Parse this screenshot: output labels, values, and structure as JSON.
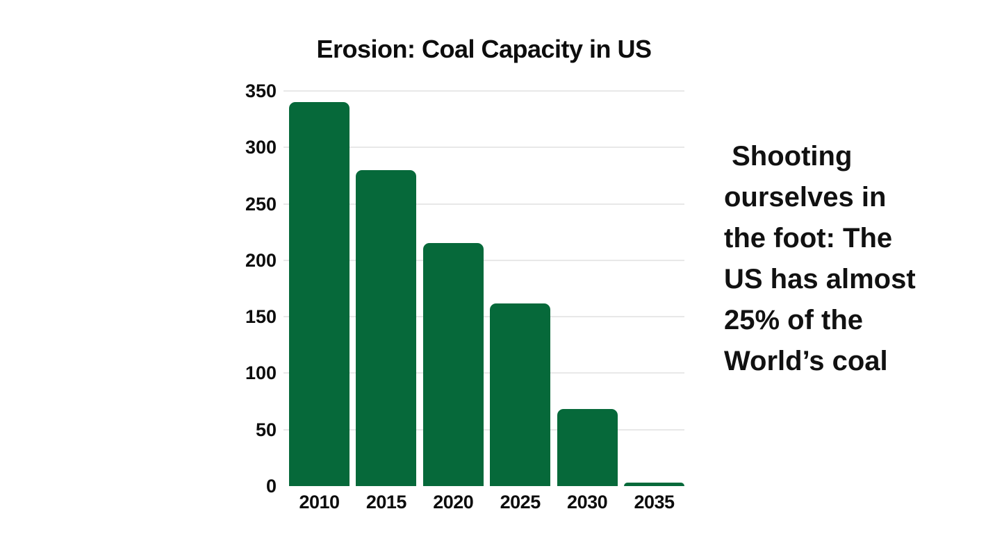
{
  "chart_data": {
    "type": "bar",
    "title": "Erosion: Coal Capacity in US",
    "categories": [
      "2010",
      "2015",
      "2020",
      "2025",
      "2030",
      "2035"
    ],
    "values": [
      340,
      280,
      215,
      162,
      68,
      3
    ],
    "xlabel": "",
    "ylabel": "",
    "ylim": [
      0,
      350
    ],
    "yticks": [
      0,
      50,
      100,
      150,
      200,
      250,
      300,
      350
    ],
    "grid": "horizontal gridlines at every 50, no zero baseline, no vertical gridlines",
    "legend": "none",
    "bar_color": "#06693a",
    "gridline_color": "#e8e8e8",
    "text_color": "#0d0d0d",
    "background_color": "#ffffff"
  },
  "side_note": {
    "text": " Shooting\nourselves in\nthe foot: The\nUS has almost\n25% of the\nWorld’s coal"
  }
}
